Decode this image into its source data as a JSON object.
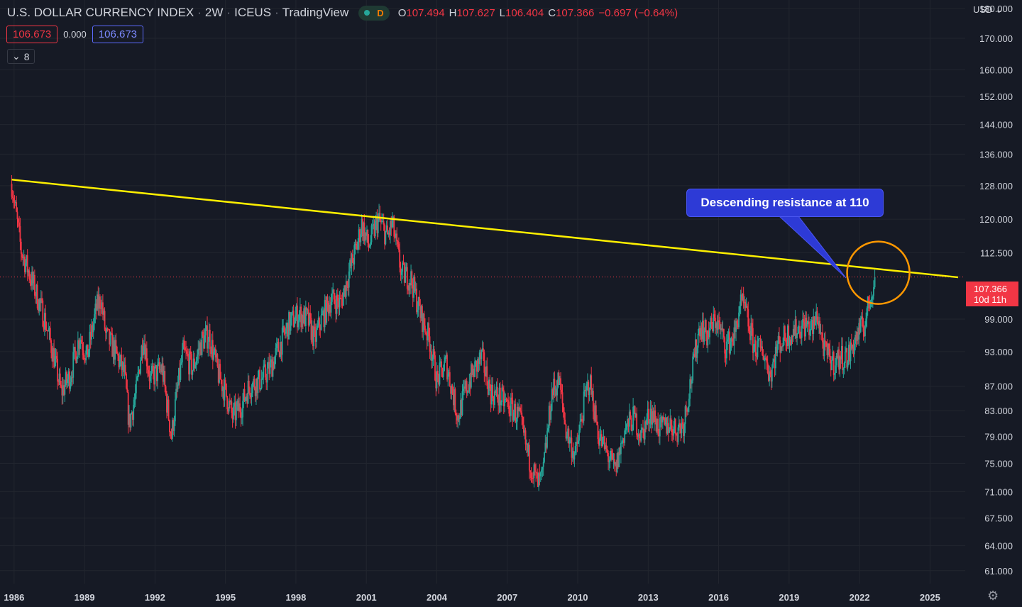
{
  "header": {
    "symbol_name": "U.S. DOLLAR CURRENCY INDEX",
    "interval": "2W",
    "exchange": "ICEUS",
    "source": "TradingView",
    "market_status": "D",
    "ohlc": {
      "open_label": "O",
      "open": "107.494",
      "high_label": "H",
      "high": "107.627",
      "low_label": "L",
      "low": "106.404",
      "close_label": "C",
      "close": "107.366",
      "change": "−0.697 (−0.64%)"
    }
  },
  "indicator": {
    "value_1": "106.673",
    "value_2": "0.000",
    "value_3": "106.673"
  },
  "collapse_count": "8",
  "currency": "USD",
  "price_tag": {
    "price": "107.366",
    "countdown": "10d 11h"
  },
  "annotation": {
    "text": "Descending resistance at 110"
  },
  "colors": {
    "background": "#161a25",
    "up": "#26a69a",
    "down": "#f23645",
    "trendline": "#fff000",
    "circle": "#ff9800",
    "callout": "#2d3ad6"
  },
  "chart_data": {
    "type": "candlestick",
    "y_scale": "log",
    "ylim": [
      59.5,
      183
    ],
    "xlim": [
      1985.4,
      2026.5
    ],
    "y_ticks": [
      "180.000",
      "170.000",
      "160.000",
      "152.000",
      "144.000",
      "136.000",
      "128.000",
      "120.000",
      "112.500",
      "99.000",
      "93.000",
      "87.000",
      "83.000",
      "79.000",
      "75.000",
      "71.000",
      "67.500",
      "64.000",
      "61.000"
    ],
    "x_ticks": [
      "1986",
      "1989",
      "1992",
      "1995",
      "1998",
      "2001",
      "2004",
      "2007",
      "2010",
      "2013",
      "2016",
      "2019",
      "2022",
      "2025"
    ],
    "close_path": [
      [
        1985.9,
        128.5
      ],
      [
        1986.3,
        113
      ],
      [
        1986.8,
        106
      ],
      [
        1987.3,
        99
      ],
      [
        1987.7,
        92
      ],
      [
        1988.0,
        86
      ],
      [
        1988.4,
        89
      ],
      [
        1988.8,
        96
      ],
      [
        1989.1,
        92
      ],
      [
        1989.5,
        101
      ],
      [
        1989.7,
        103
      ],
      [
        1989.9,
        96
      ],
      [
        1990.3,
        93
      ],
      [
        1990.7,
        89
      ],
      [
        1990.9,
        81
      ],
      [
        1991.2,
        86
      ],
      [
        1991.5,
        96
      ],
      [
        1991.8,
        88
      ],
      [
        1992.0,
        89
      ],
      [
        1992.3,
        90
      ],
      [
        1992.7,
        79
      ],
      [
        1992.9,
        85
      ],
      [
        1993.2,
        93
      ],
      [
        1993.6,
        90
      ],
      [
        1994.0,
        95
      ],
      [
        1994.3,
        96
      ],
      [
        1994.7,
        89
      ],
      [
        1995.0,
        86
      ],
      [
        1995.3,
        82
      ],
      [
        1995.7,
        84
      ],
      [
        1996.0,
        87
      ],
      [
        1996.5,
        88
      ],
      [
        1996.9,
        90
      ],
      [
        1997.3,
        94
      ],
      [
        1997.7,
        98
      ],
      [
        1998.1,
        100
      ],
      [
        1998.5,
        99
      ],
      [
        1998.8,
        95
      ],
      [
        1999.0,
        98
      ],
      [
        1999.5,
        103
      ],
      [
        1999.9,
        102
      ],
      [
        2000.3,
        109
      ],
      [
        2000.6,
        114
      ],
      [
        2000.8,
        119
      ],
      [
        2001.1,
        114
      ],
      [
        2001.5,
        120
      ],
      [
        2001.9,
        116
      ],
      [
        2002.1,
        119
      ],
      [
        2002.5,
        108
      ],
      [
        2002.9,
        107
      ],
      [
        2003.3,
        100
      ],
      [
        2003.7,
        95
      ],
      [
        2004.0,
        88
      ],
      [
        2004.4,
        91
      ],
      [
        2004.9,
        82
      ],
      [
        2005.2,
        86
      ],
      [
        2005.5,
        89
      ],
      [
        2005.9,
        92
      ],
      [
        2006.3,
        86
      ],
      [
        2006.7,
        85
      ],
      [
        2007.0,
        84
      ],
      [
        2007.5,
        82
      ],
      [
        2007.9,
        76
      ],
      [
        2008.3,
        72
      ],
      [
        2008.5,
        73
      ],
      [
        2008.9,
        86
      ],
      [
        2009.2,
        88
      ],
      [
        2009.5,
        80
      ],
      [
        2009.9,
        76
      ],
      [
        2010.3,
        85
      ],
      [
        2010.5,
        88
      ],
      [
        2010.9,
        79
      ],
      [
        2011.3,
        76
      ],
      [
        2011.6,
        74
      ],
      [
        2012.0,
        80
      ],
      [
        2012.4,
        82
      ],
      [
        2012.7,
        79
      ],
      [
        2013.1,
        83
      ],
      [
        2013.5,
        80
      ],
      [
        2013.9,
        81
      ],
      [
        2014.2,
        80
      ],
      [
        2014.5,
        81
      ],
      [
        2014.9,
        90
      ],
      [
        2015.2,
        98
      ],
      [
        2015.5,
        96
      ],
      [
        2015.9,
        99
      ],
      [
        2016.3,
        94
      ],
      [
        2016.7,
        96
      ],
      [
        2016.9,
        102
      ],
      [
        2017.1,
        101
      ],
      [
        2017.5,
        94
      ],
      [
        2017.9,
        93
      ],
      [
        2018.2,
        89
      ],
      [
        2018.5,
        94
      ],
      [
        2018.9,
        96
      ],
      [
        2019.3,
        97
      ],
      [
        2019.7,
        98
      ],
      [
        2020.0,
        97
      ],
      [
        2020.2,
        100
      ],
      [
        2020.5,
        93
      ],
      [
        2020.9,
        91
      ],
      [
        2021.2,
        92
      ],
      [
        2021.5,
        92
      ],
      [
        2021.9,
        96
      ],
      [
        2022.2,
        98
      ],
      [
        2022.5,
        104
      ],
      [
        2022.6,
        106.4
      ],
      [
        2022.65,
        107.366
      ]
    ],
    "trendline": {
      "from": [
        1985.9,
        129.5
      ],
      "to": [
        2026.2,
        107.3
      ],
      "label": "Descending resistance at 110"
    },
    "last_close": 107.366
  }
}
